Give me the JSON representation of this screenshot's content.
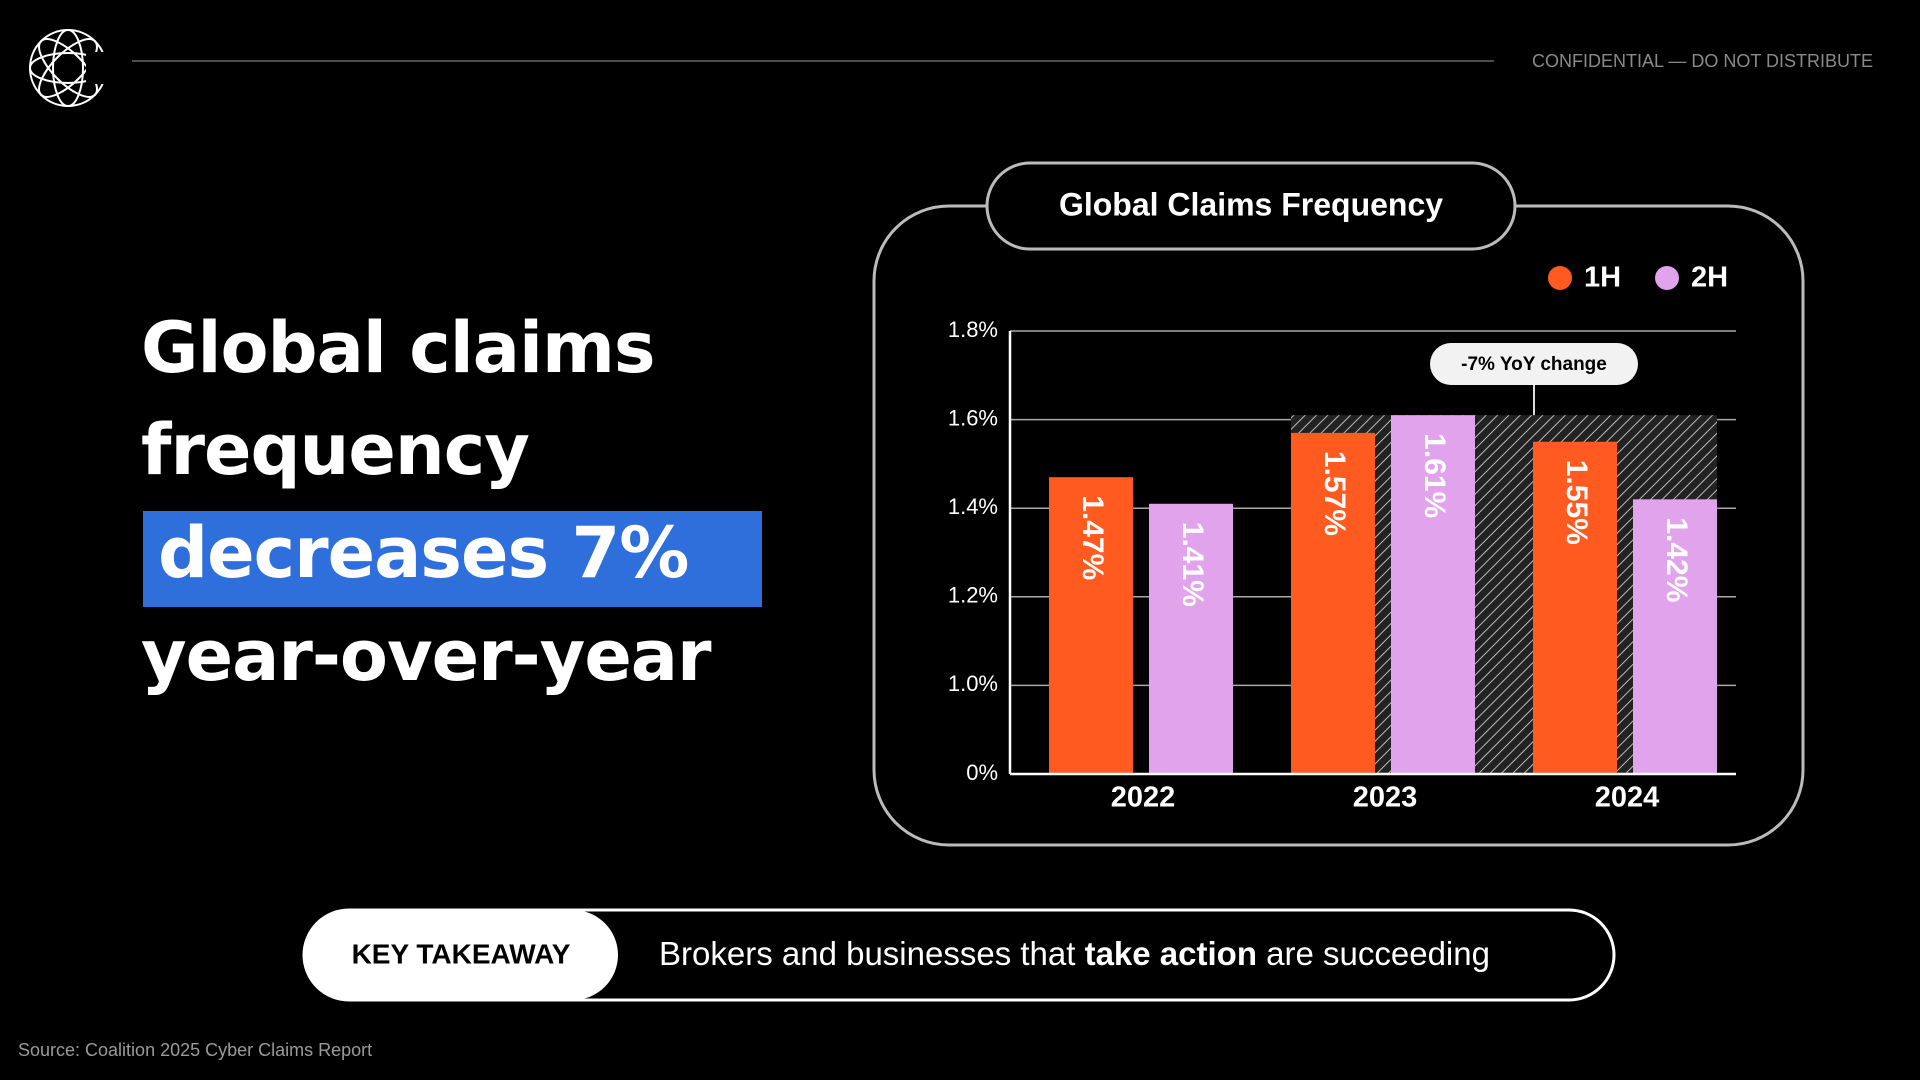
{
  "header": {
    "confidential": "CONFIDENTIAL — DO NOT DISTRIBUTE"
  },
  "headline": {
    "lines": [
      "Global claims",
      "frequency",
      "decreases 7%",
      "year-over-year"
    ]
  },
  "chart_data": {
    "type": "bar",
    "title": "Global Claims Frequency",
    "categories": [
      "2022",
      "2023",
      "2024"
    ],
    "series": [
      {
        "name": "1H",
        "color": "#ff5a1f",
        "values": [
          1.47,
          1.57,
          1.55
        ],
        "value_labels": [
          "1.47%",
          "1.57%",
          "1.55%"
        ]
      },
      {
        "name": "2H",
        "color": "#e0a3ec",
        "values": [
          1.41,
          1.61,
          1.42
        ],
        "value_labels": [
          "1.41%",
          "1.61%",
          "1.42%"
        ]
      }
    ],
    "ylim": [
      0,
      1.8
    ],
    "yticks": [
      {
        "value": 0,
        "label": "0%"
      },
      {
        "value": 1.0,
        "label": "1.0%"
      },
      {
        "value": 1.2,
        "label": "1.2%"
      },
      {
        "value": 1.4,
        "label": "1.4%"
      },
      {
        "value": 1.6,
        "label": "1.6%"
      },
      {
        "value": 1.8,
        "label": "1.8%"
      }
    ],
    "grid": true,
    "annotation": "-7% YoY change"
  },
  "takeaway": {
    "label": "KEY TAKEAWAY",
    "text": [
      "Brokers and businesses that ",
      "take action",
      " are succeeding"
    ]
  },
  "source": "Source: Coalition 2025 Cyber Claims Report"
}
